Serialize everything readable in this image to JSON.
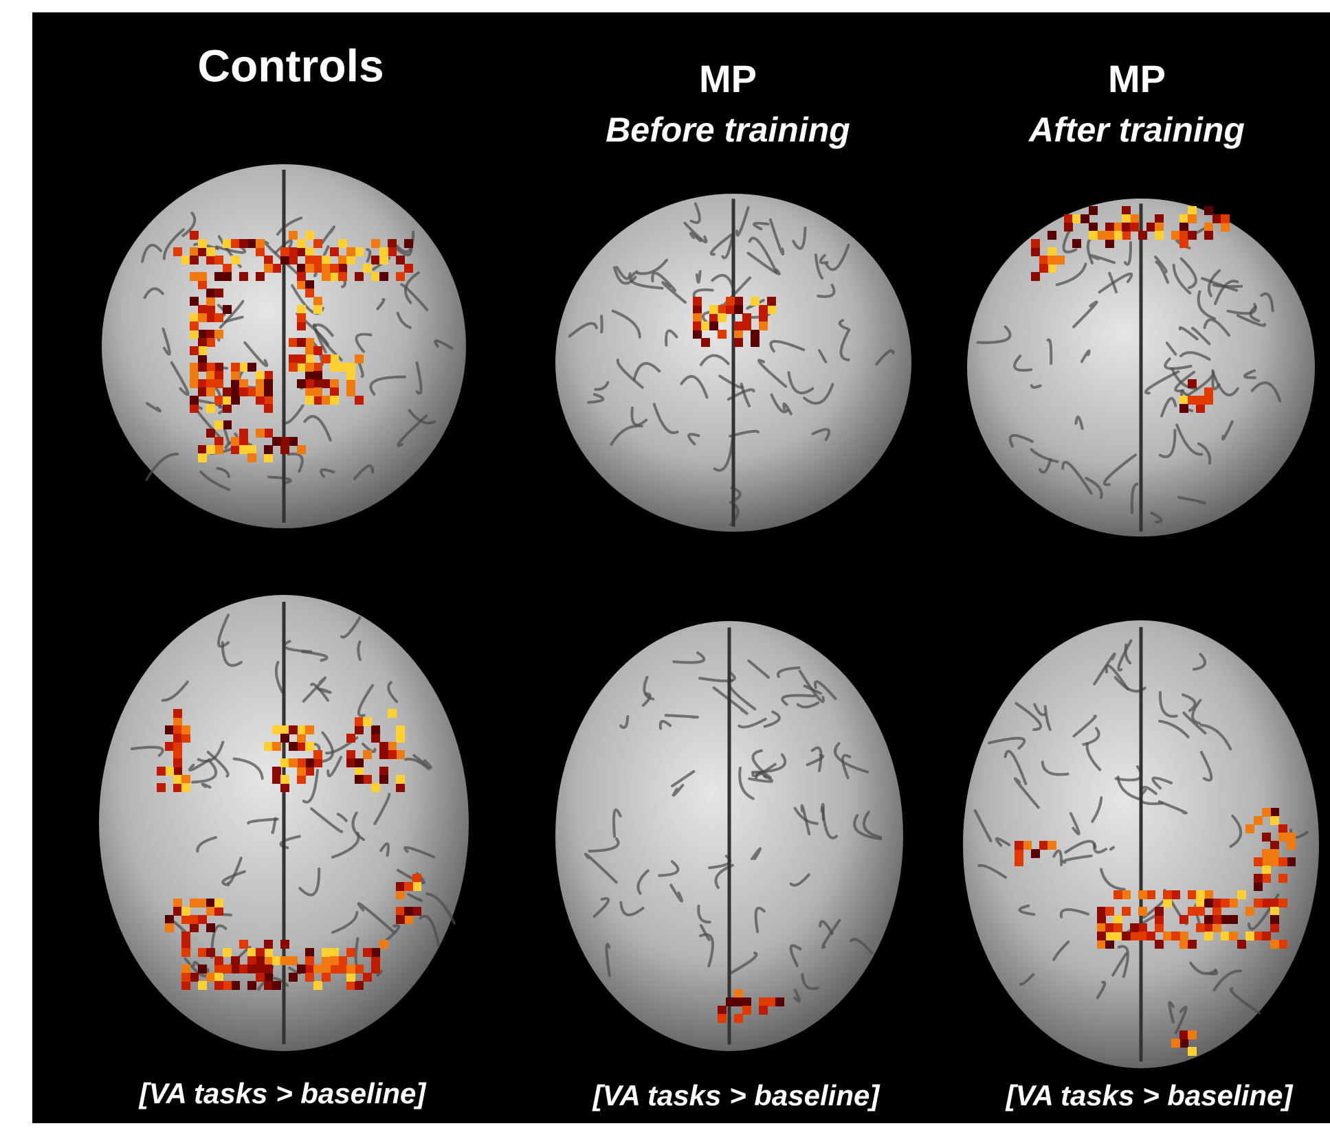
{
  "columns": [
    {
      "title": "Controls",
      "caption": "[VA tasks > baseline]"
    },
    {
      "title": "MP",
      "subtitle": "Before training",
      "caption": "[VA tasks > baseline]"
    },
    {
      "title": "MP",
      "subtitle": "After training",
      "caption": "[VA tasks > baseline]"
    }
  ]
}
